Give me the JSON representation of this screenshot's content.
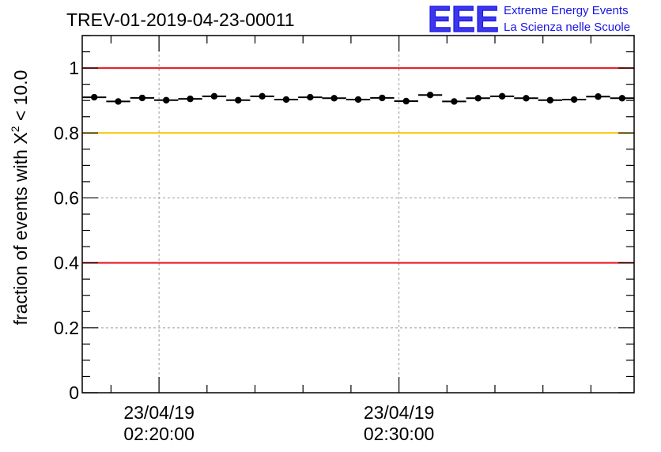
{
  "chart_data": {
    "type": "scatter",
    "title": "TREV-01-2019-04-23-00011",
    "ylabel_prefix": "fraction of events with ",
    "ylabel_symbol": "X",
    "ylabel_superscript": "2",
    "ylabel_suffix": " < 10.0",
    "xlabel": "",
    "ylim": [
      0,
      1.1
    ],
    "yticks": [
      0,
      0.2,
      0.4,
      0.6,
      0.8,
      1
    ],
    "ytick_labels": [
      "0",
      "0.2",
      "0.4",
      "0.6",
      "0.8",
      "1"
    ],
    "xlim_minutes": [
      16.8,
      39.8
    ],
    "xticks_major_minutes": [
      20,
      30
    ],
    "xtick_labels": [
      {
        "date": "23/04/19",
        "time": "02:20:00"
      },
      {
        "date": "23/04/19",
        "time": "02:30:00"
      }
    ],
    "xticks_minor_minutes": [
      18,
      22,
      24,
      26,
      28,
      32,
      34,
      36,
      38
    ],
    "grid": true,
    "reference_lines": [
      {
        "y": 1.0,
        "color": "#e8141c"
      },
      {
        "y": 0.8,
        "color": "#f7c400"
      },
      {
        "y": 0.4,
        "color": "#e8141c"
      }
    ],
    "series": [
      {
        "name": "fraction",
        "bin_width_minutes": 1.0,
        "x_minutes": [
          17.3,
          18.3,
          19.3,
          20.3,
          21.3,
          22.3,
          23.3,
          24.3,
          25.3,
          26.3,
          27.3,
          28.3,
          29.3,
          30.3,
          31.3,
          32.3,
          33.3,
          34.3,
          35.3,
          36.3,
          37.3,
          38.3,
          39.3
        ],
        "values": [
          0.91,
          0.897,
          0.908,
          0.901,
          0.905,
          0.913,
          0.901,
          0.913,
          0.903,
          0.91,
          0.907,
          0.903,
          0.908,
          0.898,
          0.917,
          0.897,
          0.907,
          0.913,
          0.907,
          0.901,
          0.903,
          0.912,
          0.907
        ]
      }
    ]
  },
  "logo": {
    "mark": "EEE",
    "line1": "Extreme Energy Events",
    "line2": "La Scienza nelle Scuole"
  },
  "colors": {
    "logo_blue": "#1a14e6",
    "red_line": "#e8141c",
    "yellow_line": "#f7c400",
    "grid": "#9a9a9a"
  }
}
